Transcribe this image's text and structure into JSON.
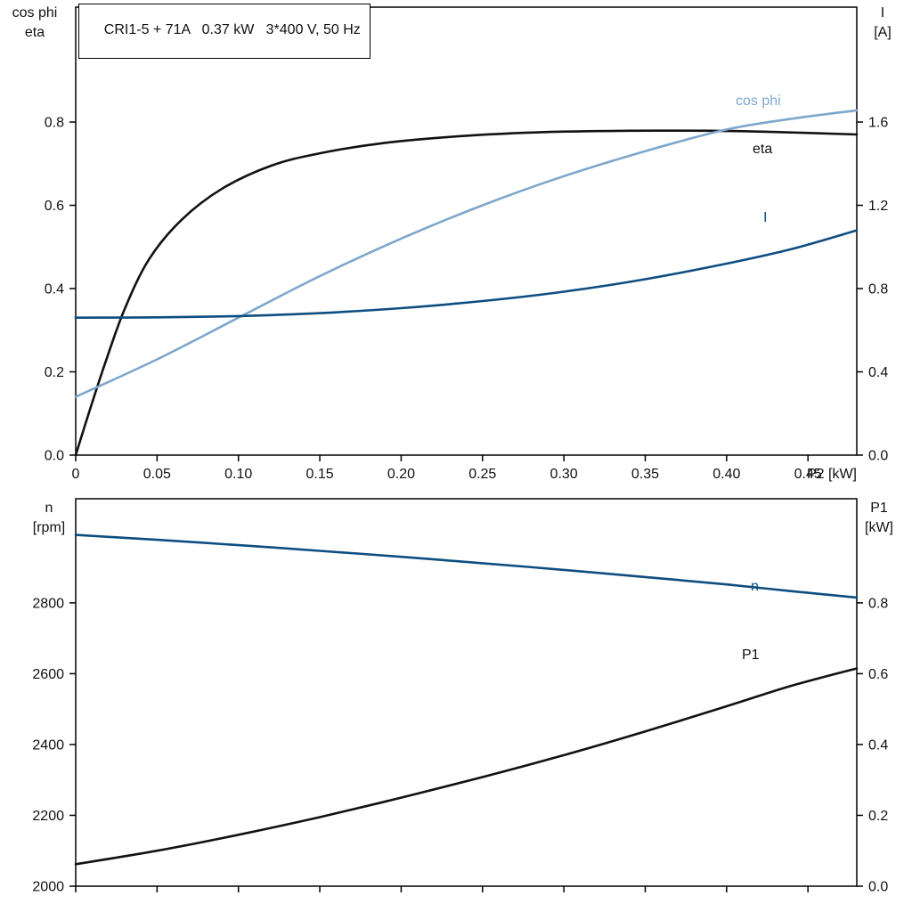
{
  "title_box": "CRI1-5 + 71A   0.37 kW   3*400 V, 50 Hz",
  "colors": {
    "black": "#111111",
    "light_blue": "#7da7cb",
    "dark_blue": "#0d4d80"
  },
  "chart_data": [
    {
      "type": "line",
      "title": "CRI1-5 + 71A   0.37 kW   3*400 V, 50 Hz",
      "x_axis": {
        "label": "P2 [kW]",
        "min": 0,
        "max": 0.48,
        "ticks": [
          0,
          0.05,
          0.1,
          0.15,
          0.2,
          0.25,
          0.3,
          0.35,
          0.4,
          0.45
        ],
        "tick_labels": [
          "0",
          "0.05",
          "0.10",
          "0.15",
          "0.20",
          "0.25",
          "0.30",
          "0.35",
          "0.40",
          "0.45"
        ],
        "show_tick_labels": true
      },
      "left_axis": {
        "label_lines": [
          "cos phi",
          "eta"
        ],
        "min": 0,
        "max": 1.076,
        "ticks": [
          0,
          0.2,
          0.4,
          0.6,
          0.8
        ],
        "tick_labels": [
          "0.0",
          "0.2",
          "0.4",
          "0.6",
          "0.8"
        ]
      },
      "right_axis": {
        "label_lines": [
          "I",
          "[A]"
        ],
        "min": 0,
        "max": 2.152,
        "ticks": [
          0,
          0.4,
          0.8,
          1.2,
          1.6
        ],
        "tick_labels": [
          "0.0",
          "0.4",
          "0.8",
          "1.2",
          "1.6"
        ]
      },
      "series": [
        {
          "name": "eta",
          "label": "eta",
          "axis": "left",
          "color_key": "black",
          "x": [
            0,
            0.008,
            0.018,
            0.03,
            0.045,
            0.065,
            0.09,
            0.12,
            0.15,
            0.19,
            0.24,
            0.29,
            0.34,
            0.39,
            0.43,
            0.48
          ],
          "y": [
            0,
            0.1,
            0.22,
            0.35,
            0.47,
            0.565,
            0.64,
            0.695,
            0.725,
            0.75,
            0.767,
            0.776,
            0.779,
            0.779,
            0.776,
            0.77
          ]
        },
        {
          "name": "cos phi",
          "label": "cos phi",
          "axis": "left",
          "color_key": "light_blue",
          "x": [
            0,
            0.05,
            0.1,
            0.15,
            0.2,
            0.25,
            0.3,
            0.35,
            0.4,
            0.44,
            0.48
          ],
          "y": [
            0.14,
            0.23,
            0.33,
            0.43,
            0.52,
            0.6,
            0.67,
            0.73,
            0.782,
            0.808,
            0.828
          ]
        },
        {
          "name": "I",
          "label": "I",
          "axis": "right",
          "color_key": "dark_blue",
          "x": [
            0,
            0.05,
            0.1,
            0.15,
            0.2,
            0.25,
            0.3,
            0.35,
            0.4,
            0.44,
            0.48
          ],
          "y": [
            0.66,
            0.662,
            0.668,
            0.682,
            0.706,
            0.74,
            0.785,
            0.845,
            0.92,
            0.99,
            1.08
          ]
        }
      ]
    },
    {
      "type": "line",
      "title": "",
      "x_axis": {
        "label": "",
        "min": 0,
        "max": 0.48,
        "ticks": [
          0,
          0.05,
          0.1,
          0.15,
          0.2,
          0.25,
          0.3,
          0.35,
          0.4,
          0.45
        ],
        "tick_labels": [],
        "show_tick_labels": false
      },
      "left_axis": {
        "label_lines": [
          "n",
          "[rpm]"
        ],
        "min": 2000,
        "max": 3094,
        "ticks": [
          2000,
          2200,
          2400,
          2600,
          2800
        ],
        "tick_labels": [
          "2000",
          "2200",
          "2400",
          "2600",
          "2800"
        ]
      },
      "right_axis": {
        "label_lines": [
          "P1",
          "[kW]"
        ],
        "min": 0,
        "max": 1.094,
        "ticks": [
          0,
          0.2,
          0.4,
          0.6,
          0.8
        ],
        "tick_labels": [
          "0.0",
          "0.2",
          "0.4",
          "0.6",
          "0.8"
        ]
      },
      "series": [
        {
          "name": "n",
          "label": "n",
          "axis": "left",
          "color_key": "dark_blue",
          "x": [
            0,
            0.05,
            0.1,
            0.15,
            0.2,
            0.25,
            0.3,
            0.35,
            0.4,
            0.44,
            0.48
          ],
          "y": [
            2992,
            2978,
            2963,
            2947,
            2930,
            2912,
            2893,
            2873,
            2852,
            2833,
            2815
          ]
        },
        {
          "name": "P1",
          "label": "P1",
          "axis": "right",
          "color_key": "black",
          "x": [
            0,
            0.05,
            0.1,
            0.15,
            0.2,
            0.25,
            0.3,
            0.35,
            0.4,
            0.44,
            0.48
          ],
          "y": [
            0.062,
            0.1,
            0.145,
            0.195,
            0.25,
            0.308,
            0.37,
            0.437,
            0.508,
            0.566,
            0.615
          ]
        }
      ]
    }
  ]
}
